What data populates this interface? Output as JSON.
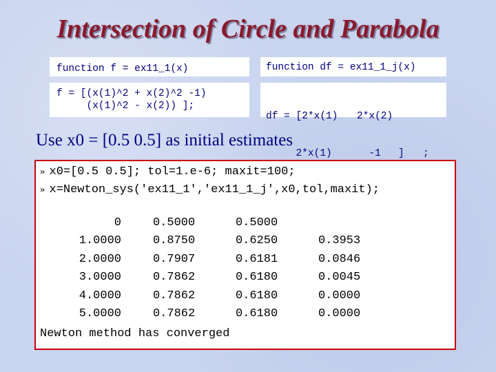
{
  "title": "Intersection of Circle and Parabola",
  "f_function": {
    "header": "function f = ex11_1(x)",
    "line1": "f = [(x(1)^2 + x(2)^2 -1)",
    "line2": "     (x(1)^2 - x(2)) ];"
  },
  "df_function": {
    "header": "function df = ex11_1_j(x)",
    "row1": [
      "df = [2*x(1)",
      "2*x(2)",
      "",
      ""
    ],
    "row2": [
      "     2*x(1)",
      "  -1",
      "]",
      ";"
    ]
  },
  "subtitle": "Use x0 = [0.5 0.5] as initial estimates",
  "console": {
    "prompt": "»",
    "commands": [
      "x0=[0.5 0.5]; tol=1.e-6; maxit=100;",
      "x=Newton_sys('ex11_1','ex11_1_j',x0,tol,maxit);"
    ],
    "results": [
      [
        "0",
        "0.5000",
        "0.5000",
        ""
      ],
      [
        "1.0000",
        "0.8750",
        "0.6250",
        "0.3953"
      ],
      [
        "2.0000",
        "0.7907",
        "0.6181",
        "0.0846"
      ],
      [
        "3.0000",
        "0.7862",
        "0.6180",
        "0.0045"
      ],
      [
        "4.0000",
        "0.7862",
        "0.6180",
        "0.0000"
      ],
      [
        "5.0000",
        "0.7862",
        "0.6180",
        "0.0000"
      ]
    ],
    "status": "Newton method has converged"
  }
}
